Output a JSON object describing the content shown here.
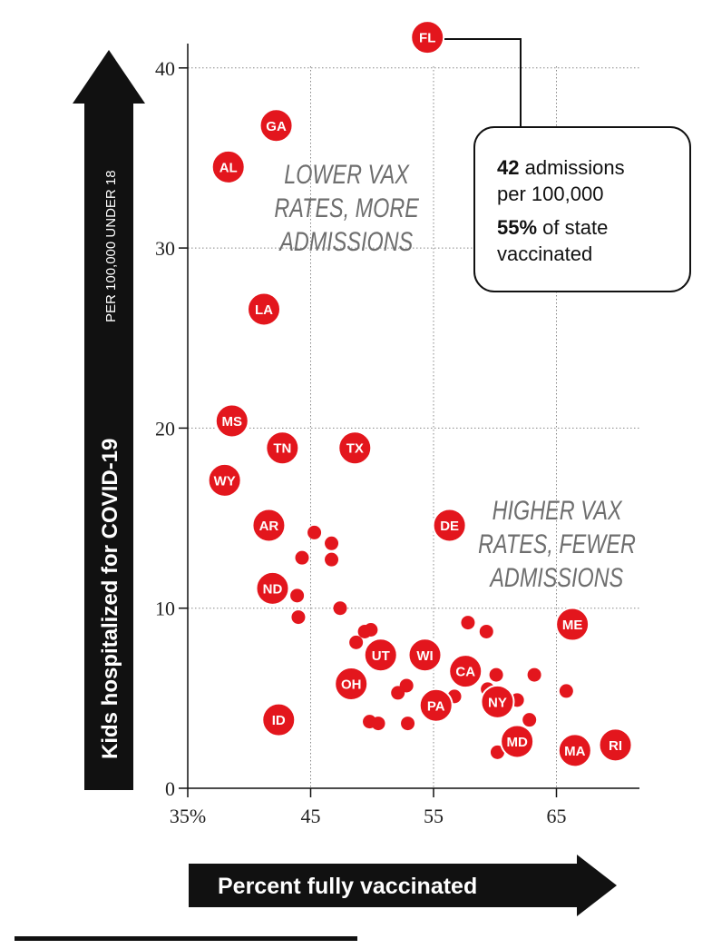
{
  "chart_data": {
    "type": "scatter",
    "xlabel": "Percent fully vaccinated",
    "ylabel": "Kids hospitalized for COVID-19",
    "ylabel_sub": "PER 100,000 UNDER 18",
    "xlim": [
      35,
      71
    ],
    "ylim": [
      0,
      42
    ],
    "x_ticks": [
      35,
      45,
      55,
      65
    ],
    "x_tick_labels": [
      "35%",
      "45",
      "55",
      "65"
    ],
    "y_ticks": [
      0,
      10,
      20,
      30,
      40
    ],
    "y_tick_labels": [
      "0",
      "10",
      "20",
      "30",
      "40"
    ],
    "grid": true,
    "point_color": "#e3161d",
    "annotations": [
      {
        "lines": [
          "LOWER VAX",
          "RATES, MORE",
          "ADMISSIONS"
        ]
      },
      {
        "lines": [
          "HIGHER VAX",
          "RATES, FEWER",
          "ADMISSIONS"
        ]
      }
    ],
    "callout": {
      "state": "FL",
      "line1_bold": "42",
      "line1_rest": " admissions",
      "line2": "per 100,000",
      "line3_bold": "55%",
      "line3_rest": " of state",
      "line4": "vaccinated"
    },
    "labeled_points": [
      {
        "label": "FL",
        "x": 54.5,
        "y": 41.7
      },
      {
        "label": "GA",
        "x": 42.2,
        "y": 36.8
      },
      {
        "label": "AL",
        "x": 38.3,
        "y": 34.5
      },
      {
        "label": "LA",
        "x": 41.2,
        "y": 26.6
      },
      {
        "label": "MS",
        "x": 38.6,
        "y": 20.4
      },
      {
        "label": "TN",
        "x": 42.7,
        "y": 18.9
      },
      {
        "label": "TX",
        "x": 48.6,
        "y": 18.9
      },
      {
        "label": "WY",
        "x": 38.0,
        "y": 17.1
      },
      {
        "label": "AR",
        "x": 41.6,
        "y": 14.6
      },
      {
        "label": "DE",
        "x": 56.3,
        "y": 14.6
      },
      {
        "label": "ND",
        "x": 41.9,
        "y": 11.1
      },
      {
        "label": "ME",
        "x": 66.3,
        "y": 9.1
      },
      {
        "label": "UT",
        "x": 50.7,
        "y": 7.4
      },
      {
        "label": "WI",
        "x": 54.3,
        "y": 7.4
      },
      {
        "label": "CA",
        "x": 57.6,
        "y": 6.5
      },
      {
        "label": "OH",
        "x": 48.3,
        "y": 5.8
      },
      {
        "label": "NY",
        "x": 60.2,
        "y": 4.8
      },
      {
        "label": "PA",
        "x": 55.2,
        "y": 4.6
      },
      {
        "label": "ID",
        "x": 42.4,
        "y": 3.8
      },
      {
        "label": "MD",
        "x": 61.8,
        "y": 2.6
      },
      {
        "label": "MA",
        "x": 66.5,
        "y": 2.1
      },
      {
        "label": "RI",
        "x": 69.8,
        "y": 2.4
      }
    ],
    "unlabeled_points": [
      {
        "x": 45.3,
        "y": 14.2
      },
      {
        "x": 46.7,
        "y": 13.6
      },
      {
        "x": 44.3,
        "y": 12.8
      },
      {
        "x": 46.7,
        "y": 12.7
      },
      {
        "x": 43.9,
        "y": 10.7
      },
      {
        "x": 47.4,
        "y": 10.0
      },
      {
        "x": 44.0,
        "y": 9.5
      },
      {
        "x": 49.4,
        "y": 8.7
      },
      {
        "x": 49.9,
        "y": 8.8
      },
      {
        "x": 57.8,
        "y": 9.2
      },
      {
        "x": 59.3,
        "y": 8.7
      },
      {
        "x": 48.7,
        "y": 8.1
      },
      {
        "x": 60.1,
        "y": 6.3
      },
      {
        "x": 63.2,
        "y": 6.3
      },
      {
        "x": 52.8,
        "y": 5.7
      },
      {
        "x": 59.4,
        "y": 5.5
      },
      {
        "x": 52.1,
        "y": 5.3
      },
      {
        "x": 65.8,
        "y": 5.4
      },
      {
        "x": 56.7,
        "y": 5.1
      },
      {
        "x": 61.8,
        "y": 4.9
      },
      {
        "x": 49.8,
        "y": 3.7
      },
      {
        "x": 50.5,
        "y": 3.6
      },
      {
        "x": 52.9,
        "y": 3.6
      },
      {
        "x": 62.8,
        "y": 3.8
      },
      {
        "x": 60.2,
        "y": 2.0
      },
      {
        "x": 69.5,
        "y": 1.9
      }
    ]
  }
}
